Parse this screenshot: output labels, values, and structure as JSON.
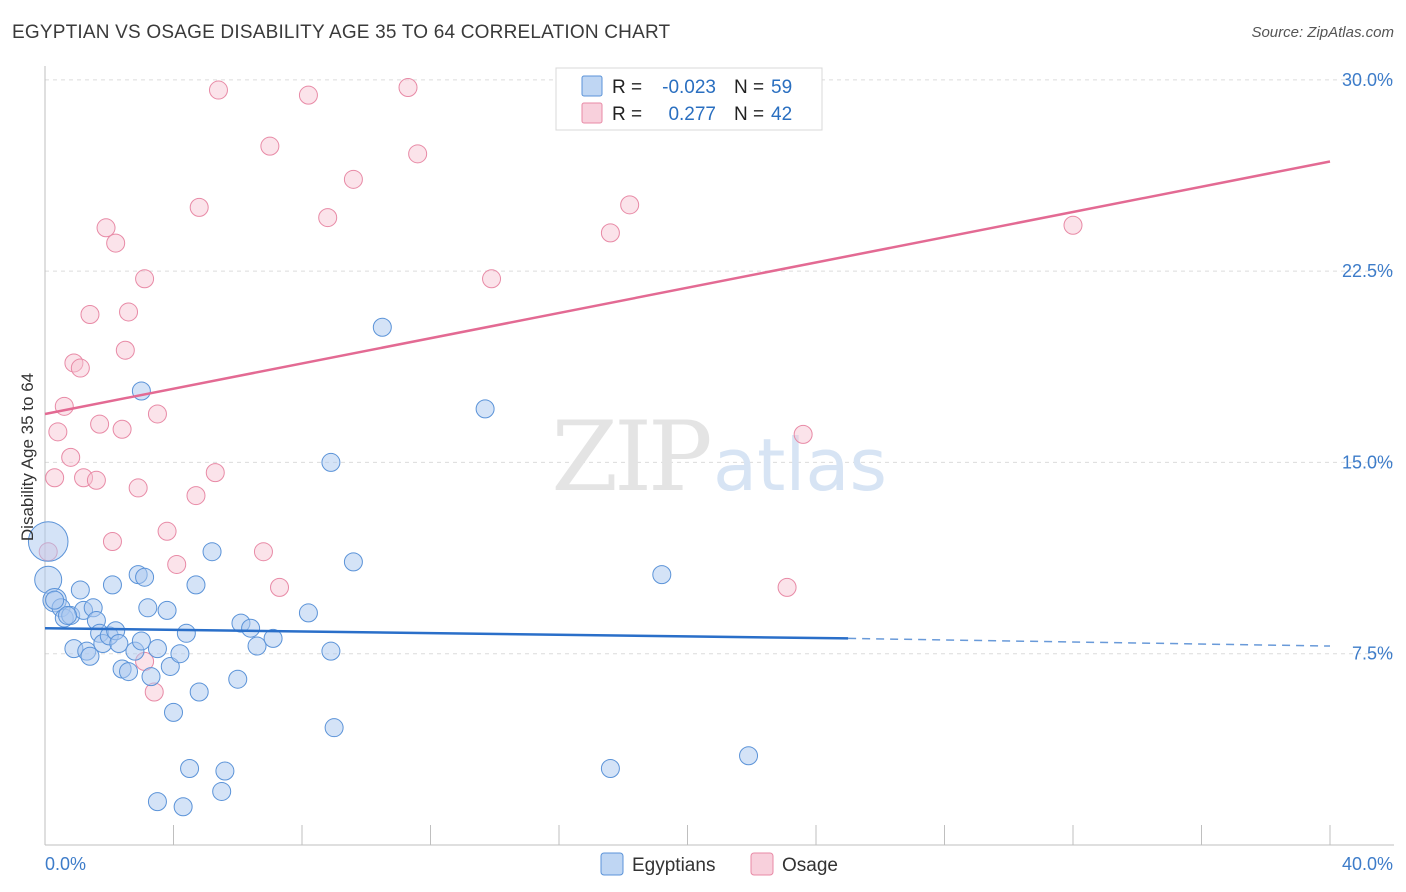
{
  "title": "EGYPTIAN VS OSAGE DISABILITY AGE 35 TO 64 CORRELATION CHART",
  "source": "Source: ZipAtlas.com",
  "watermark": {
    "zip": "ZIP",
    "atlas": "atlas"
  },
  "colors": {
    "blue_fill": "#a9c8ef",
    "blue_stroke": "#5b93d8",
    "blue_line": "#2a6fc9",
    "pink_fill": "#f6c0d0",
    "pink_stroke": "#e88aa6",
    "pink_line": "#e36a93",
    "tick_text": "#3d7cc9"
  },
  "legend": {
    "rows": [
      {
        "r_label": "R =",
        "r_value": "-0.023",
        "n_label": "N =",
        "n_value": "59",
        "series": "Egyptians"
      },
      {
        "r_label": "R =",
        "r_value": "0.277",
        "n_label": "N =",
        "n_value": "42",
        "series": "Osage"
      }
    ]
  },
  "bottom_legend": [
    "Egyptians",
    "Osage"
  ],
  "chart_data": {
    "type": "scatter",
    "title": "EGYPTIAN VS OSAGE DISABILITY AGE 35 TO 64 CORRELATION CHART",
    "xlabel": "",
    "ylabel": "Disability Age 35 to 64",
    "xlim": [
      0,
      40
    ],
    "ylim": [
      0,
      30.7
    ],
    "x_tick_labels": [
      "0.0%",
      "40.0%"
    ],
    "y_ticks": [
      7.5,
      15.0,
      22.5,
      30.0
    ],
    "y_tick_labels": [
      "7.5%",
      "15.0%",
      "22.5%",
      "30.0%"
    ],
    "series": [
      {
        "name": "Egyptians",
        "r": -0.023,
        "n": 59,
        "trend": {
          "x0": 0,
          "y0": 8.5,
          "x1": 25,
          "y1": 8.1,
          "dash_x1": 40,
          "dash_y1": 7.8
        },
        "points": [
          [
            0.1,
            11.9,
            2.2
          ],
          [
            0.1,
            10.4,
            1.5
          ],
          [
            0.3,
            9.6,
            1.3
          ],
          [
            0.5,
            9.3,
            1.0
          ],
          [
            0.6,
            8.9,
            1.0
          ],
          [
            0.8,
            9.0,
            1.0
          ],
          [
            0.9,
            7.7,
            1.0
          ],
          [
            1.1,
            10.0,
            1.0
          ],
          [
            1.2,
            9.2,
            1.0
          ],
          [
            1.3,
            7.6,
            1.0
          ],
          [
            1.4,
            7.4,
            1.0
          ],
          [
            1.5,
            9.3,
            1.0
          ],
          [
            1.6,
            8.8,
            1.0
          ],
          [
            1.7,
            8.3,
            1.0
          ],
          [
            1.8,
            7.9,
            1.0
          ],
          [
            2.0,
            8.2,
            1.0
          ],
          [
            2.1,
            10.2,
            1.0
          ],
          [
            2.2,
            8.4,
            1.0
          ],
          [
            2.3,
            7.9,
            1.0
          ],
          [
            2.4,
            6.9,
            1.0
          ],
          [
            2.6,
            6.8,
            1.0
          ],
          [
            2.8,
            7.6,
            1.0
          ],
          [
            2.9,
            10.6,
            1.0
          ],
          [
            3.0,
            8.0,
            1.0
          ],
          [
            3.1,
            10.5,
            1.0
          ],
          [
            3.0,
            17.8,
            1.0
          ],
          [
            3.2,
            9.3,
            1.0
          ],
          [
            3.3,
            6.6,
            1.0
          ],
          [
            3.5,
            7.7,
            1.0
          ],
          [
            3.8,
            9.2,
            1.0
          ],
          [
            3.9,
            7.0,
            1.0
          ],
          [
            4.0,
            5.2,
            1.0
          ],
          [
            4.2,
            7.5,
            1.0
          ],
          [
            4.4,
            8.3,
            1.0
          ],
          [
            4.5,
            3.0,
            1.0
          ],
          [
            4.7,
            10.2,
            1.0
          ],
          [
            4.8,
            6.0,
            1.0
          ],
          [
            5.2,
            11.5,
            1.0
          ],
          [
            5.5,
            2.1,
            1.0
          ],
          [
            5.6,
            2.9,
            1.0
          ],
          [
            6.0,
            6.5,
            1.0
          ],
          [
            6.1,
            8.7,
            1.0
          ],
          [
            6.4,
            8.5,
            1.0
          ],
          [
            6.6,
            7.8,
            1.0
          ],
          [
            7.1,
            8.1,
            1.0
          ],
          [
            8.2,
            9.1,
            1.0
          ],
          [
            8.9,
            15.0,
            1.0
          ],
          [
            8.9,
            7.6,
            1.0
          ],
          [
            9.0,
            4.6,
            1.0
          ],
          [
            9.6,
            11.1,
            1.0
          ],
          [
            10.5,
            20.3,
            1.0
          ],
          [
            3.5,
            1.7,
            1.0
          ],
          [
            4.3,
            1.5,
            1.0
          ],
          [
            13.7,
            17.1,
            1.0
          ],
          [
            17.6,
            3.0,
            1.0
          ],
          [
            19.2,
            10.6,
            1.0
          ],
          [
            21.9,
            3.5,
            1.0
          ],
          [
            0.3,
            9.6,
            1.0
          ],
          [
            0.7,
            9.0,
            1.0
          ]
        ]
      },
      {
        "name": "Osage",
        "r": 0.277,
        "n": 42,
        "trend": {
          "x0": 0,
          "y0": 16.9,
          "x1": 40,
          "y1": 26.8
        },
        "points": [
          [
            0.1,
            11.5,
            1.0
          ],
          [
            0.3,
            14.4,
            1.0
          ],
          [
            0.4,
            16.2,
            1.0
          ],
          [
            0.6,
            17.2,
            1.0
          ],
          [
            0.8,
            15.2,
            1.0
          ],
          [
            0.9,
            18.9,
            1.0
          ],
          [
            1.1,
            18.7,
            1.0
          ],
          [
            1.2,
            14.4,
            1.0
          ],
          [
            1.4,
            20.8,
            1.0
          ],
          [
            1.6,
            14.3,
            1.0
          ],
          [
            1.7,
            16.5,
            1.0
          ],
          [
            1.9,
            24.2,
            1.0
          ],
          [
            2.1,
            11.9,
            1.0
          ],
          [
            2.2,
            23.6,
            1.0
          ],
          [
            2.4,
            16.3,
            1.0
          ],
          [
            2.5,
            19.4,
            1.0
          ],
          [
            2.6,
            20.9,
            1.0
          ],
          [
            2.9,
            14.0,
            1.0
          ],
          [
            3.1,
            7.2,
            1.0
          ],
          [
            3.1,
            22.2,
            1.0
          ],
          [
            3.4,
            6.0,
            1.0
          ],
          [
            3.5,
            16.9,
            1.0
          ],
          [
            3.8,
            12.3,
            1.0
          ],
          [
            4.1,
            11.0,
            1.0
          ],
          [
            4.7,
            13.7,
            1.0
          ],
          [
            4.8,
            25.0,
            1.0
          ],
          [
            5.3,
            14.6,
            1.0
          ],
          [
            5.4,
            29.6,
            1.0
          ],
          [
            6.8,
            11.5,
            1.0
          ],
          [
            7.0,
            27.4,
            1.0
          ],
          [
            7.3,
            10.1,
            1.0
          ],
          [
            8.2,
            29.4,
            1.0
          ],
          [
            8.8,
            24.6,
            1.0
          ],
          [
            9.6,
            26.1,
            1.0
          ],
          [
            11.3,
            29.7,
            1.0
          ],
          [
            11.6,
            27.1,
            1.0
          ],
          [
            13.9,
            22.2,
            1.0
          ],
          [
            17.6,
            24.0,
            1.0
          ],
          [
            18.2,
            25.1,
            1.0
          ],
          [
            23.1,
            10.1,
            1.0
          ],
          [
            23.6,
            16.1,
            1.0
          ],
          [
            32.0,
            24.3,
            1.0
          ]
        ]
      }
    ]
  }
}
